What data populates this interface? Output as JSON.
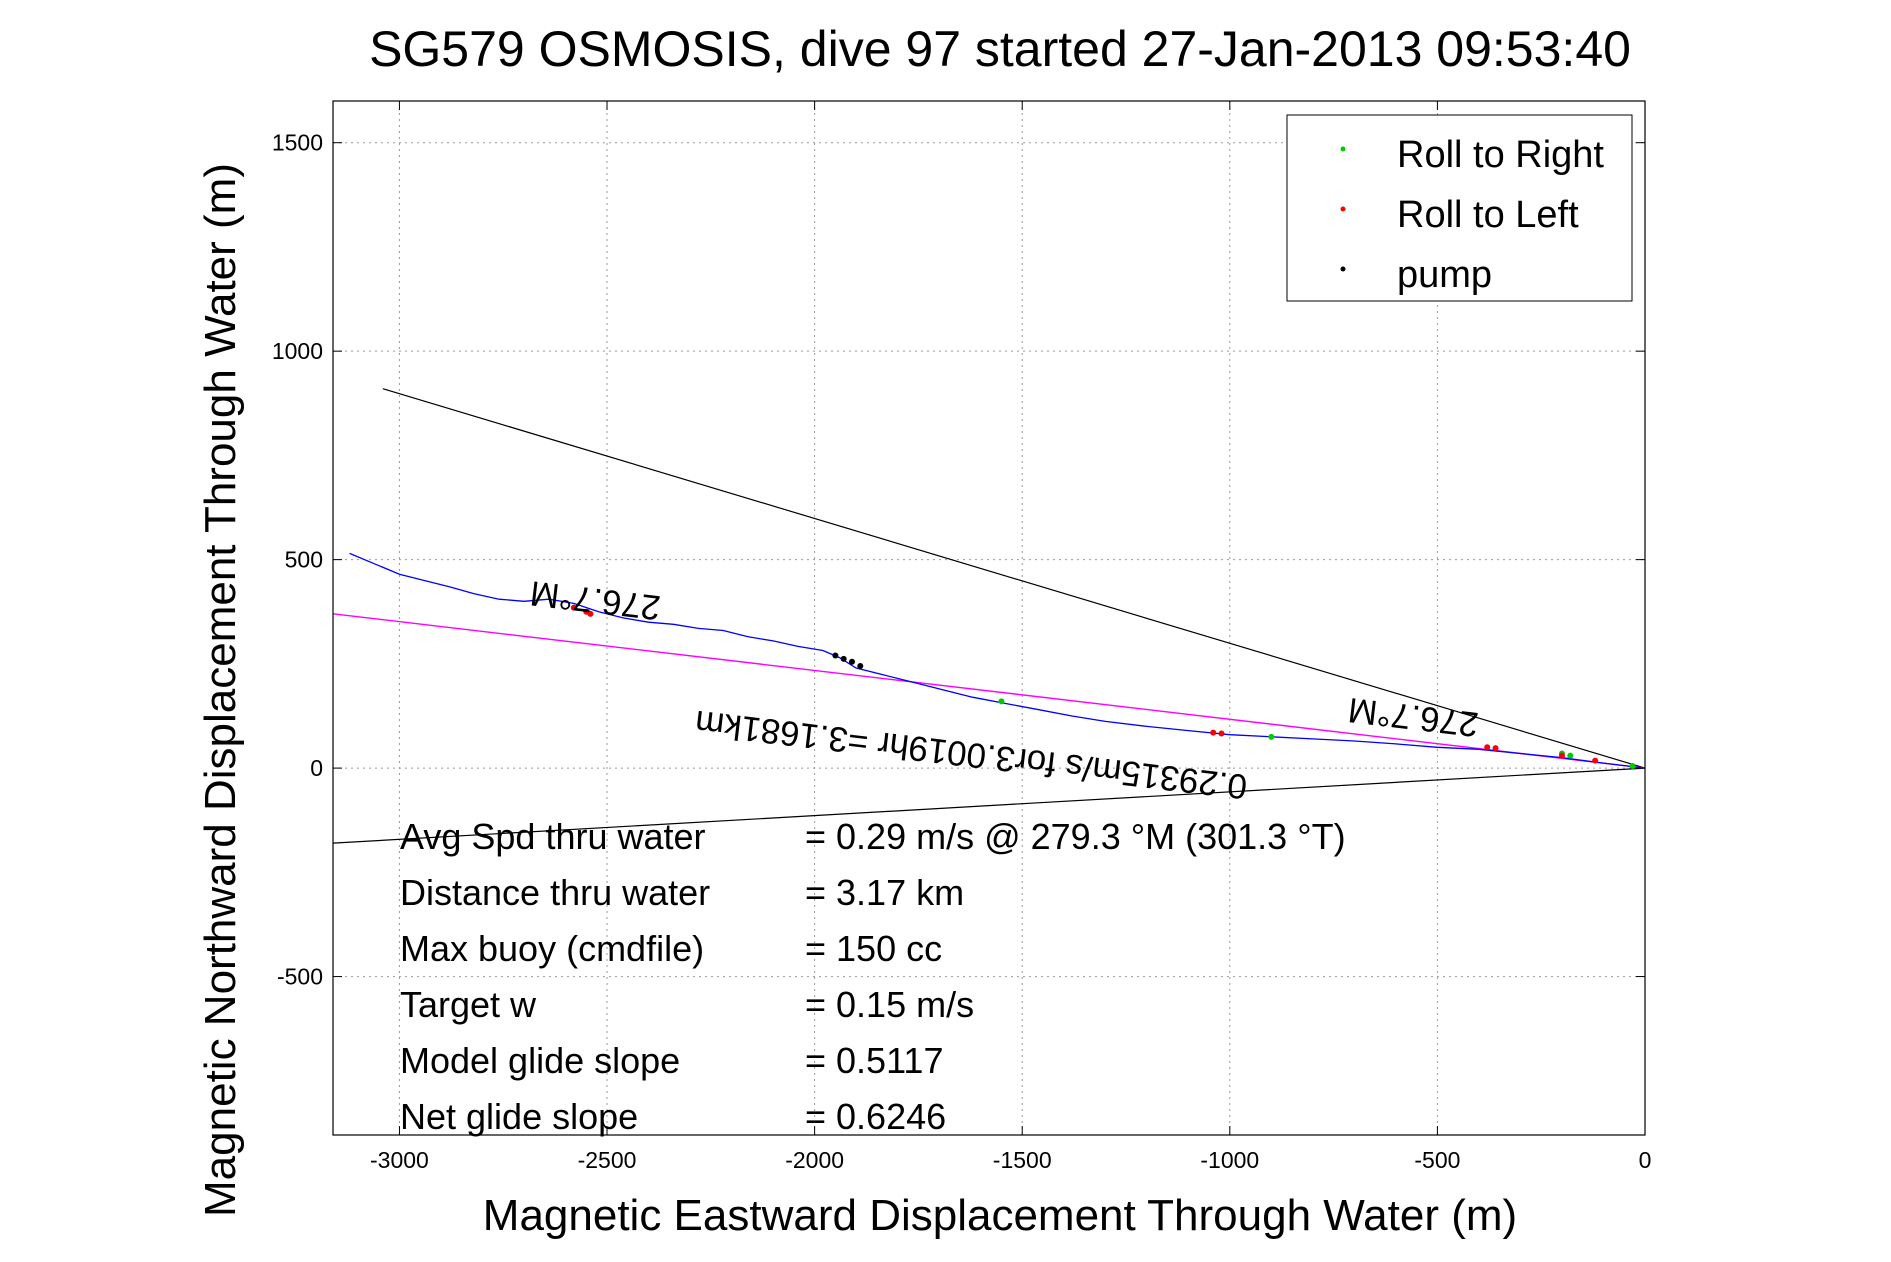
{
  "chart_data": {
    "type": "line",
    "title": "SG579 OSMOSIS, dive 97 started 27-Jan-2013 09:53:40",
    "xlabel": "Magnetic Eastward Displacement Through Water (m)",
    "ylabel": "Magnetic Northward Displacement Through Water (m)",
    "xlim": [
      -3160,
      0
    ],
    "ylim": [
      -880,
      1600
    ],
    "x_ticks": [
      -3000,
      -2500,
      -2000,
      -1500,
      -1000,
      -500,
      0
    ],
    "y_ticks": [
      -500,
      0,
      500,
      1000,
      1500
    ],
    "grid": true,
    "legend_position": "top-right",
    "legend": [
      {
        "label": "Roll to Right",
        "color": "#00cc00"
      },
      {
        "label": "Roll to Left",
        "color": "#ff0000"
      },
      {
        "label": "pump",
        "color": "#000000"
      }
    ],
    "track": {
      "color": "#0000ff",
      "x": [
        -3120,
        -3060,
        -3000,
        -2940,
        -2880,
        -2820,
        -2760,
        -2700,
        -2640,
        -2580,
        -2520,
        -2460,
        -2400,
        -2340,
        -2280,
        -2220,
        -2160,
        -2100,
        -2040,
        -1980,
        -1940,
        -1900,
        -1840,
        -1780,
        -1700,
        -1620,
        -1540,
        -1460,
        -1380,
        -1300,
        -1200,
        -1100,
        -1000,
        -900,
        -800,
        -700,
        -600,
        -500,
        -400,
        -300,
        -200,
        -100,
        0
      ],
      "y": [
        515,
        490,
        465,
        450,
        435,
        418,
        405,
        400,
        405,
        395,
        375,
        360,
        350,
        345,
        335,
        330,
        315,
        305,
        292,
        282,
        265,
        240,
        225,
        210,
        190,
        170,
        155,
        140,
        125,
        112,
        100,
        90,
        80,
        75,
        70,
        65,
        58,
        50,
        45,
        35,
        25,
        12,
        0
      ]
    },
    "heading_line": {
      "color": "#ff00ff",
      "x": [
        -3160,
        0
      ],
      "y": [
        370,
        0
      ]
    },
    "envelope_lines": [
      {
        "color": "#000000",
        "x": [
          -3040,
          0
        ],
        "y": [
          910,
          0
        ]
      },
      {
        "color": "#000000",
        "x": [
          -3160,
          0
        ],
        "y": [
          -180,
          0
        ]
      }
    ],
    "markers": [
      {
        "series": "Roll to Right",
        "x": [
          -1550,
          -900,
          -200,
          -180,
          -30
        ],
        "y": [
          160,
          75,
          35,
          30,
          5
        ]
      },
      {
        "series": "Roll to Left",
        "x": [
          -2580,
          -2550,
          -2540,
          -1040,
          -1020,
          -380,
          -360,
          -200,
          -120
        ],
        "y": [
          385,
          375,
          370,
          85,
          83,
          50,
          48,
          30,
          18
        ]
      },
      {
        "series": "pump",
        "x": [
          -1950,
          -1930,
          -1910,
          -1890
        ],
        "y": [
          270,
          262,
          255,
          245
        ]
      }
    ],
    "annotations": [
      {
        "text": "276.7°M",
        "x": -2525,
        "y": 430
      },
      {
        "text": "0.29315m/s for3.0019hr =3.1681km",
        "x": -1620,
        "y": 60
      },
      {
        "text": "276.7°M",
        "x": -555,
        "y": 150
      }
    ],
    "stats": [
      {
        "label": "Avg Spd thru water",
        "value": "=  0.29 m/s @ 279.3 °M (301.3 °T)"
      },
      {
        "label": "Distance thru water",
        "value": "=  3.17 km"
      },
      {
        "label": "Max buoy (cmdfile)",
        "value": "= 150 cc"
      },
      {
        "label": "Target w",
        "value": "= 0.15 m/s"
      },
      {
        "label": "Model glide slope",
        "value": "= 0.5117"
      },
      {
        "label": "Net glide slope",
        "value": "= 0.6246"
      }
    ]
  }
}
